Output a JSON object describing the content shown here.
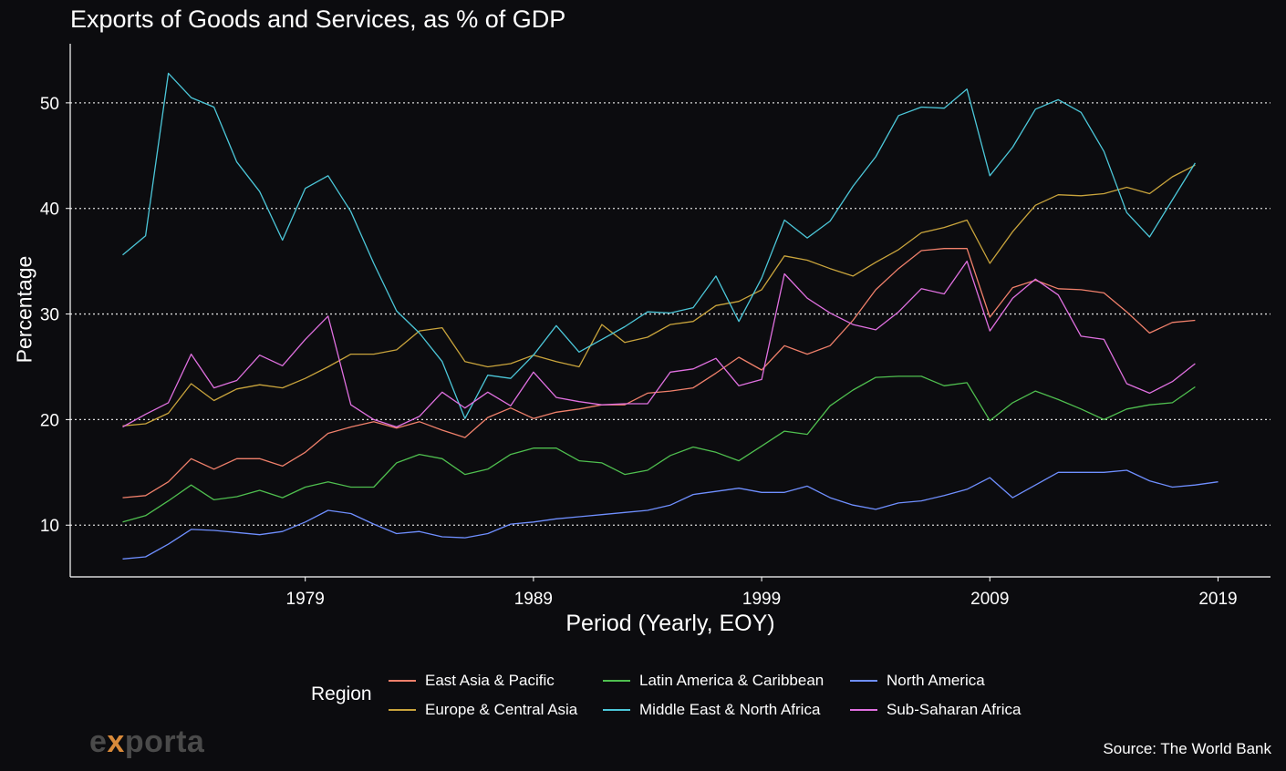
{
  "title": "Exports of Goods and Services, as % of GDP",
  "source": "Source: The World Bank",
  "logo": {
    "prefix": "e",
    "accent": "x",
    "rest": "porta"
  },
  "legend": {
    "title": "Region",
    "items": [
      {
        "label": "East Asia & Pacific",
        "color": "#f0806b"
      },
      {
        "label": "Latin America & Caribbean",
        "color": "#4fbf4f"
      },
      {
        "label": "North America",
        "color": "#6f8fff"
      },
      {
        "label": "Europe & Central Asia",
        "color": "#c9a43c"
      },
      {
        "label": "Middle East & North Africa",
        "color": "#4cc7d9"
      },
      {
        "label": "Sub-Saharan Africa",
        "color": "#e070e0"
      }
    ]
  },
  "chart_data": {
    "type": "line",
    "title": "Exports of Goods and Services, as % of GDP",
    "xlabel": "Period (Yearly, EOY)",
    "ylabel": "Percentage",
    "xlim": [
      1968.7,
      2021.3
    ],
    "ylim": [
      5.1,
      55.6
    ],
    "x_ticks": [
      1979,
      1989,
      1999,
      2009,
      2019
    ],
    "y_ticks": [
      10,
      20,
      30,
      40,
      50
    ],
    "grid": "horizontal dotted",
    "legend_position": "bottom",
    "x": [
      1971,
      1972,
      1973,
      1974,
      1975,
      1976,
      1977,
      1978,
      1979,
      1980,
      1981,
      1982,
      1983,
      1984,
      1985,
      1986,
      1987,
      1988,
      1989,
      1990,
      1991,
      1992,
      1993,
      1994,
      1995,
      1996,
      1997,
      1998,
      1999,
      2000,
      2001,
      2002,
      2003,
      2004,
      2005,
      2006,
      2007,
      2008,
      2009,
      2010,
      2011,
      2012,
      2013,
      2014,
      2015,
      2016,
      2017,
      2018,
      2019
    ],
    "series": [
      {
        "name": "East Asia & Pacific",
        "color": "#f0806b",
        "values": [
          12.6,
          12.8,
          14.1,
          16.3,
          15.3,
          16.3,
          16.3,
          15.6,
          16.9,
          18.7,
          19.3,
          19.8,
          19.2,
          19.8,
          19.0,
          18.3,
          20.2,
          21.1,
          20.1,
          20.7,
          21.0,
          21.4,
          21.4,
          22.5,
          22.7,
          23.0,
          24.4,
          25.9,
          24.7,
          27.0,
          26.2,
          27.0,
          29.4,
          32.3,
          34.3,
          36.0,
          36.2,
          36.2,
          29.7,
          32.5,
          33.2,
          32.4,
          32.3,
          32.0,
          30.2,
          28.2,
          29.2,
          29.4,
          null
        ]
      },
      {
        "name": "Europe & Central Asia",
        "color": "#c9a43c",
        "values": [
          19.4,
          19.6,
          20.6,
          23.4,
          21.8,
          22.9,
          23.3,
          23.0,
          23.9,
          25.0,
          26.2,
          26.2,
          26.6,
          28.4,
          28.7,
          25.5,
          25.0,
          25.3,
          26.1,
          25.5,
          25.0,
          29.0,
          27.3,
          27.8,
          29.0,
          29.3,
          30.8,
          31.2,
          32.3,
          35.5,
          35.1,
          34.3,
          33.6,
          34.9,
          36.1,
          37.7,
          38.2,
          38.9,
          34.8,
          37.8,
          40.3,
          41.3,
          41.2,
          41.4,
          42.0,
          41.4,
          43.0,
          44.1,
          null
        ]
      },
      {
        "name": "Latin America & Caribbean",
        "color": "#4fbf4f",
        "values": [
          10.3,
          10.9,
          12.3,
          13.8,
          12.4,
          12.7,
          13.3,
          12.6,
          13.6,
          14.1,
          13.6,
          13.6,
          15.9,
          16.7,
          16.3,
          14.8,
          15.3,
          16.7,
          17.3,
          17.3,
          16.1,
          15.9,
          14.8,
          15.2,
          16.6,
          17.4,
          16.9,
          16.1,
          17.5,
          18.9,
          18.6,
          21.3,
          22.8,
          24.0,
          24.1,
          24.1,
          23.2,
          23.5,
          19.9,
          21.6,
          22.7,
          21.9,
          21.0,
          20.0,
          21.0,
          21.4,
          21.6,
          23.1,
          null
        ]
      },
      {
        "name": "Middle East & North Africa",
        "color": "#4cc7d9",
        "values": [
          35.6,
          37.4,
          52.8,
          50.5,
          49.6,
          44.4,
          41.6,
          37.0,
          41.9,
          43.1,
          39.7,
          34.8,
          30.3,
          28.2,
          25.5,
          20.1,
          24.2,
          23.9,
          26.1,
          28.9,
          26.4,
          27.6,
          28.8,
          30.2,
          30.1,
          30.6,
          33.6,
          29.3,
          33.4,
          38.9,
          37.2,
          38.8,
          42.1,
          44.9,
          48.8,
          49.6,
          49.5,
          51.3,
          43.1,
          45.8,
          49.4,
          50.3,
          49.1,
          45.4,
          39.6,
          37.3,
          40.8,
          44.3,
          null
        ]
      },
      {
        "name": "North America",
        "color": "#6f8fff",
        "values": [
          6.8,
          7.0,
          8.2,
          9.6,
          9.5,
          9.3,
          9.1,
          9.4,
          10.3,
          11.4,
          11.1,
          10.1,
          9.2,
          9.4,
          8.9,
          8.8,
          9.2,
          10.1,
          10.3,
          10.6,
          10.8,
          11.0,
          11.2,
          11.4,
          11.9,
          12.9,
          13.2,
          13.5,
          13.1,
          13.1,
          13.7,
          12.6,
          11.9,
          11.5,
          12.1,
          12.3,
          12.8,
          13.4,
          14.5,
          12.6,
          13.8,
          15.0,
          15.0,
          15.0,
          15.2,
          14.2,
          13.6,
          13.8,
          14.1
        ]
      },
      {
        "name": "Sub-Saharan Africa",
        "color": "#e070e0",
        "values": [
          19.3,
          20.5,
          21.6,
          26.2,
          23.0,
          23.7,
          26.1,
          25.1,
          27.6,
          29.8,
          21.4,
          20.0,
          19.3,
          20.3,
          22.6,
          21.1,
          22.6,
          21.3,
          24.5,
          22.1,
          21.7,
          21.4,
          21.5,
          21.5,
          24.5,
          24.8,
          25.8,
          23.2,
          23.8,
          33.8,
          31.5,
          30.1,
          29.0,
          28.5,
          30.2,
          32.4,
          31.9,
          35.0,
          28.4,
          31.5,
          33.3,
          31.8,
          27.9,
          27.6,
          23.4,
          22.5,
          23.6,
          25.3,
          null
        ]
      }
    ]
  }
}
